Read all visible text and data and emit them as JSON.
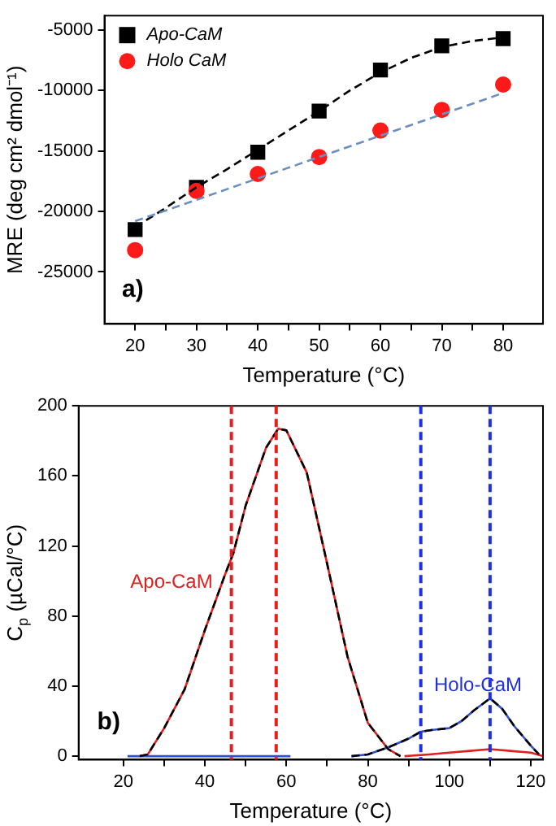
{
  "chart_data": [
    {
      "type": "scatter",
      "xlabel": "Temperature (°C)",
      "ylabel": "MRE (deg cm² dmol⁻¹)",
      "xlim": [
        15,
        86.5
      ],
      "ylim": [
        -29300,
        -3800
      ],
      "xticks": [
        20,
        {
          "value": 25,
          "label": null
        },
        30,
        {
          "value": 35,
          "label": null
        },
        40,
        {
          "value": 45,
          "label": null
        },
        50,
        {
          "value": 55,
          "label": null
        },
        60,
        {
          "value": 65,
          "label": null
        },
        70,
        {
          "value": 75,
          "label": null
        },
        80
      ],
      "yticks": [
        -25000,
        -20000,
        -15000,
        -10000,
        -5000
      ],
      "x": [
        20,
        30,
        40,
        50,
        60,
        70,
        80
      ],
      "series": [
        {
          "name": "Apo-CaM",
          "color": "#000000",
          "marker": "square",
          "values": [
            -21500,
            -18000,
            -15100,
            -11700,
            -8300,
            -6300,
            -5700
          ]
        },
        {
          "name": "Holo CaM",
          "color": "#ff1a1a",
          "marker": "circle",
          "values": [
            -23200,
            -18300,
            -16900,
            -15500,
            -13300,
            -11600,
            -9500
          ]
        },
        {
          "type": "line",
          "color": "#000000",
          "line_style": "dashed",
          "x": [
            20,
            25,
            30,
            35,
            40,
            45,
            50,
            55,
            60,
            65,
            70,
            75,
            80
          ],
          "values": [
            -21300,
            -19700,
            -18000,
            -16500,
            -14900,
            -13300,
            -11700,
            -10000,
            -8500,
            -7300,
            -6400,
            -5900,
            -5600
          ]
        },
        {
          "type": "line",
          "color": "#6a8fc0",
          "line_style": "dashed",
          "x": [
            20,
            80
          ],
          "values": [
            -20800,
            -10200
          ]
        }
      ],
      "legend": "top left",
      "grid": false,
      "annotations": [
        "a)"
      ]
    },
    {
      "type": "line",
      "xlabel": "Temperature (°C)",
      "ylabel": "C$_{p}$ (µCal/°C)",
      "xlim": [
        9,
        123
      ],
      "ylim": [
        -2,
        200
      ],
      "xticks": [
        20,
        {
          "value": 30,
          "label": null
        },
        40,
        {
          "value": 50,
          "label": null
        },
        60,
        {
          "value": 70,
          "label": null
        },
        80,
        {
          "value": 90,
          "label": null
        },
        100,
        {
          "value": 110,
          "label": null
        },
        120
      ],
      "yticks": [
        0,
        40,
        80,
        120,
        160,
        200
      ],
      "series": [
        {
          "color": "#e02020",
          "x": [
            24,
            26,
            30,
            35,
            40,
            45,
            47,
            50,
            55,
            58,
            60,
            65,
            70,
            75,
            80,
            85,
            88
          ],
          "values": [
            0,
            1,
            16,
            38,
            72,
            104,
            116,
            143,
            176,
            187,
            186,
            162,
            110,
            57,
            19,
            4,
            0
          ]
        },
        {
          "color": "#e02020",
          "x": [
            89,
            95,
            100,
            105,
            110,
            115,
            120,
            123
          ],
          "values": [
            0,
            1,
            2,
            3,
            4,
            3,
            2,
            0
          ]
        },
        {
          "color": "#3050d0",
          "x": [
            21,
            61
          ],
          "values": [
            0,
            0
          ]
        },
        {
          "color": "#3050d0",
          "x": [
            76,
            80,
            85,
            90,
            93,
            96,
            100,
            103,
            106,
            110,
            113,
            116,
            120,
            122
          ],
          "values": [
            0,
            1,
            5,
            10,
            14,
            15,
            16,
            20,
            26,
            33,
            27,
            17,
            6,
            1
          ]
        },
        {
          "color": "#000000",
          "line_style": "dashed",
          "x": [
            24,
            26,
            30,
            35,
            40,
            45,
            47,
            50,
            55,
            58,
            60,
            65,
            70,
            75,
            80,
            85,
            88
          ],
          "values": [
            0,
            1,
            16,
            38,
            72,
            104,
            116,
            143,
            176,
            187,
            186,
            162,
            110,
            57,
            19,
            4,
            0
          ]
        },
        {
          "color": "#000000",
          "line_style": "dashed",
          "x": [
            76,
            80,
            85,
            90,
            93,
            96,
            100,
            103,
            106,
            110,
            113,
            116,
            120,
            122
          ],
          "values": [
            0,
            1,
            5,
            10,
            14,
            15,
            16,
            20,
            26,
            33,
            27,
            17,
            6,
            1
          ]
        }
      ],
      "ref_lines": [
        {
          "axis": "x",
          "value": 46.5,
          "color": "#e02020",
          "line_style": "dashed"
        },
        {
          "axis": "x",
          "value": 57.5,
          "color": "#e02020",
          "line_style": "dashed"
        },
        {
          "axis": "x",
          "value": 93,
          "color": "#2030e0",
          "line_style": "dashed"
        },
        {
          "axis": "x",
          "value": 110,
          "color": "#2030e0",
          "line_style": "dashed"
        }
      ],
      "legend": false,
      "grid": false,
      "annotations": [
        "Apo-CaM",
        "Holo-CaM",
        "b)"
      ]
    }
  ]
}
